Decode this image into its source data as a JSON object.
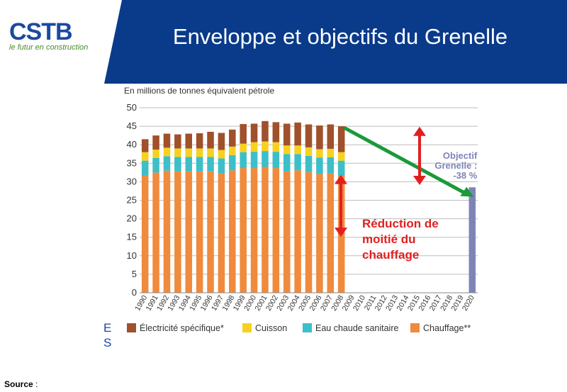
{
  "header": {
    "logo_text": "CSTB",
    "logo_tagline": "le futur en construction",
    "title": "Enveloppe et objectifs du Grenelle"
  },
  "colors": {
    "header_blue": "#0a3a8a",
    "chauffage": "#f08a3c",
    "eau_chaude": "#3cbfc8",
    "cuisson": "#f7d11e",
    "electricite": "#a0502a",
    "objectif_bar": "#7f84b8",
    "arrow_green": "#1a9a3a",
    "arrow_red": "#e02020"
  },
  "chart_data": {
    "type": "bar",
    "stacked": true,
    "ylabel": "En millions de tonnes équivalent pétrole",
    "ylim": [
      0,
      50
    ],
    "yticks": [
      0,
      5,
      10,
      15,
      20,
      25,
      30,
      35,
      40,
      45,
      50
    ],
    "grid": true,
    "legend_position": "bottom",
    "categories": [
      "1990",
      "1991",
      "1992",
      "1993",
      "1994",
      "1995",
      "1996",
      "1997",
      "1998",
      "1999",
      "2000",
      "2001",
      "2002",
      "2003",
      "2004",
      "2005",
      "2006",
      "2007",
      "2008",
      "2009",
      "2010",
      "2011",
      "2012",
      "2013",
      "2014",
      "2015",
      "2016",
      "2017",
      "2018",
      "2019",
      "2020"
    ],
    "series": [
      {
        "name": "Chauffage**",
        "color": "#f08a3c",
        "values": [
          31.8,
          32.5,
          33,
          32.8,
          32.8,
          32.8,
          32.8,
          32.3,
          33.1,
          33.7,
          33.7,
          34,
          33.7,
          32.8,
          33.1,
          32.6,
          32.1,
          32.3,
          31.8,
          null,
          null,
          null,
          null,
          null,
          null,
          null,
          null,
          null,
          null,
          null,
          null
        ]
      },
      {
        "name": "Eau chaude sanitaire",
        "color": "#3cbfc8",
        "values": [
          3.9,
          3.9,
          3.9,
          3.9,
          3.9,
          3.9,
          3.9,
          4,
          4.1,
          4.3,
          4.4,
          4.3,
          4.4,
          4.7,
          4.4,
          4.4,
          4.4,
          4.3,
          3.9,
          null,
          null,
          null,
          null,
          null,
          null,
          null,
          null,
          null,
          null,
          null,
          null
        ]
      },
      {
        "name": "Cuisson",
        "color": "#f7d11e",
        "values": [
          2.3,
          2.3,
          2.3,
          2.3,
          2.3,
          2.3,
          2.3,
          2.3,
          2.3,
          2.3,
          2.6,
          2.6,
          2.6,
          2.3,
          2.3,
          2.3,
          2.3,
          2.3,
          2.3,
          null,
          null,
          null,
          null,
          null,
          null,
          null,
          null,
          null,
          null,
          null,
          null
        ]
      },
      {
        "name": "Électricité spécifique*",
        "color": "#a0502a",
        "values": [
          3.5,
          3.8,
          3.8,
          3.8,
          4,
          4.1,
          4.5,
          4.6,
          4.6,
          5.3,
          5,
          5.5,
          5.4,
          5.9,
          6.2,
          6.2,
          6.4,
          6.6,
          7,
          null,
          null,
          null,
          null,
          null,
          null,
          null,
          null,
          null,
          null,
          null,
          null
        ]
      }
    ],
    "objectif": {
      "category": "2020",
      "value": 28.5,
      "label_lines": [
        "Objectif",
        "Grenelle :",
        "-38 %"
      ]
    },
    "annotation": {
      "lines": [
        "Réduction de",
        "moitié du",
        "chauffage"
      ]
    }
  },
  "side_letters": [
    "E",
    "S"
  ],
  "footer": {
    "source_label": "Source",
    "source_suffix": " :"
  }
}
